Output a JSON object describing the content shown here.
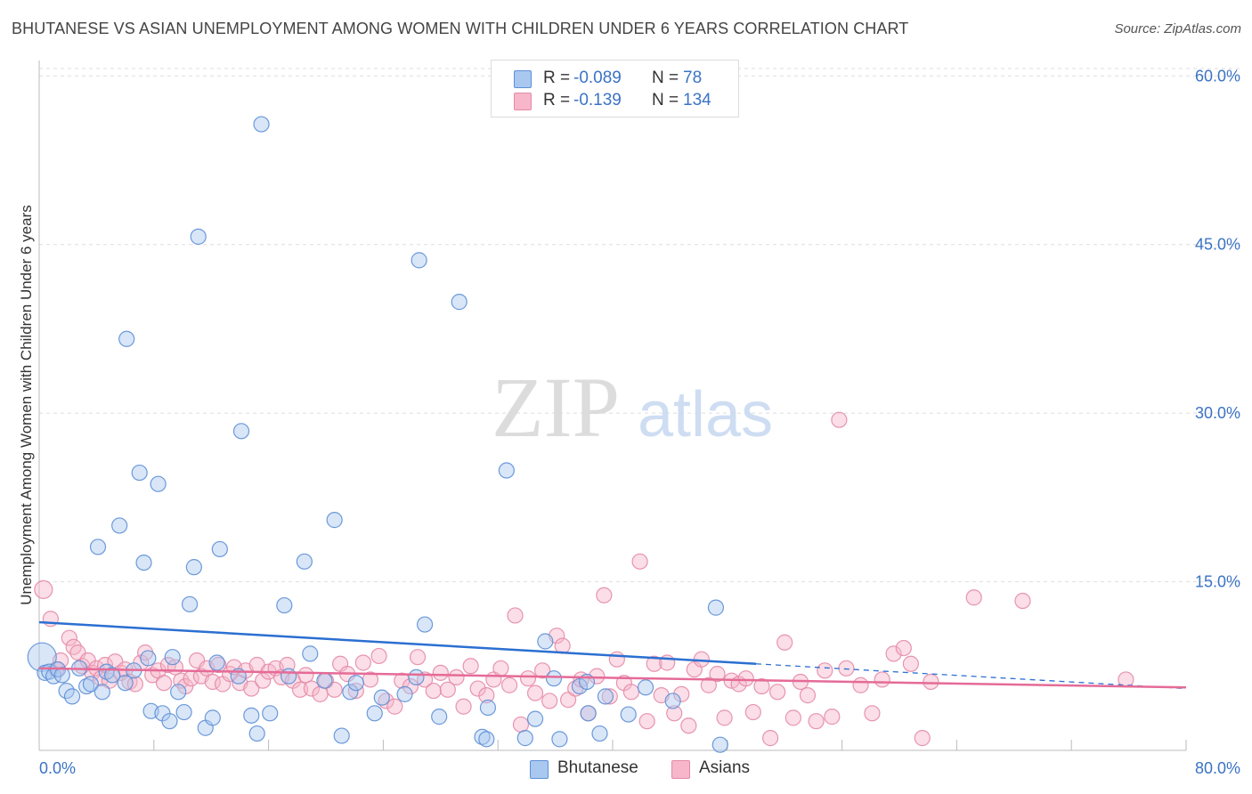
{
  "header": {
    "title": "BHUTANESE VS ASIAN UNEMPLOYMENT AMONG WOMEN WITH CHILDREN UNDER 6 YEARS CORRELATION CHART",
    "source": "Source: ZipAtlas.com"
  },
  "watermark": {
    "zip": "ZIP",
    "atlas": "atlas"
  },
  "legend": {
    "rows": [
      {
        "r_label": "R =",
        "r_value": "-0.089",
        "n_label": "N =",
        "n_value": "78"
      },
      {
        "r_label": "R =",
        "r_value": "-0.139",
        "n_label": "N =",
        "n_value": "134"
      }
    ],
    "bottom": [
      "Bhutanese",
      "Asians"
    ]
  },
  "colors": {
    "bhutanese_fill": "#a9c8f0",
    "bhutanese_stroke": "#5d8fd6",
    "bhutanese_line": "#2b6fd1",
    "asians_fill": "#f7b6c9",
    "asians_stroke": "#e48aa7",
    "asians_line": "#e56b97",
    "axis_text": "#3b73c4"
  },
  "chart_data": {
    "type": "scatter",
    "title": "BHUTANESE VS ASIAN UNEMPLOYMENT AMONG WOMEN WITH CHILDREN UNDER 6 YEARS CORRELATION CHART",
    "xlabel": "",
    "ylabel": "Unemployment Among Women with Children Under 6 years",
    "xlim": [
      0,
      80
    ],
    "ylim": [
      0,
      62
    ],
    "x_tick_labels": [
      "0.0%",
      "80.0%"
    ],
    "y_ticks": [
      15,
      30,
      45,
      60
    ],
    "y_tick_labels": [
      "15.0%",
      "30.0%",
      "45.0%",
      "60.0%"
    ],
    "grid": "horizontal dashed",
    "legend_position": "top-center",
    "series": [
      {
        "name": "Bhutanese",
        "r": -0.089,
        "n": 78,
        "trend": {
          "x": [
            0,
            50
          ],
          "y": [
            11.4,
            7.7
          ],
          "dashed_extension": {
            "x": [
              50,
              80
            ],
            "y": [
              7.7,
              5.5
            ]
          }
        },
        "points": [
          [
            0.2,
            8.3
          ],
          [
            0.4,
            6.9
          ],
          [
            0.7,
            7.0
          ],
          [
            1.0,
            6.6
          ],
          [
            1.3,
            7.2
          ],
          [
            1.6,
            6.7
          ],
          [
            1.9,
            5.3
          ],
          [
            2.3,
            4.8
          ],
          [
            2.8,
            7.3
          ],
          [
            3.3,
            5.7
          ],
          [
            3.6,
            5.9
          ],
          [
            4.1,
            18.1
          ],
          [
            4.4,
            5.2
          ],
          [
            4.7,
            7.0
          ],
          [
            5.1,
            6.7
          ],
          [
            5.6,
            20.0
          ],
          [
            6.0,
            6.0
          ],
          [
            6.1,
            36.6
          ],
          [
            6.6,
            7.1
          ],
          [
            7.0,
            24.7
          ],
          [
            7.3,
            16.7
          ],
          [
            7.6,
            8.2
          ],
          [
            7.8,
            3.5
          ],
          [
            8.3,
            23.7
          ],
          [
            8.6,
            3.3
          ],
          [
            9.1,
            2.6
          ],
          [
            9.3,
            8.3
          ],
          [
            9.7,
            5.2
          ],
          [
            10.1,
            3.4
          ],
          [
            10.5,
            13.0
          ],
          [
            10.8,
            16.3
          ],
          [
            11.1,
            45.7
          ],
          [
            11.6,
            2.0
          ],
          [
            12.1,
            2.9
          ],
          [
            12.4,
            7.8
          ],
          [
            12.6,
            17.9
          ],
          [
            13.9,
            6.6
          ],
          [
            14.1,
            28.4
          ],
          [
            14.8,
            3.1
          ],
          [
            15.2,
            1.5
          ],
          [
            15.5,
            55.7
          ],
          [
            16.1,
            3.3
          ],
          [
            17.1,
            12.9
          ],
          [
            17.4,
            6.6
          ],
          [
            18.5,
            16.8
          ],
          [
            18.9,
            8.6
          ],
          [
            19.9,
            6.2
          ],
          [
            20.6,
            20.5
          ],
          [
            21.1,
            1.3
          ],
          [
            21.7,
            5.2
          ],
          [
            22.1,
            6.0
          ],
          [
            23.4,
            3.3
          ],
          [
            23.9,
            4.7
          ],
          [
            25.5,
            5.0
          ],
          [
            26.3,
            6.5
          ],
          [
            26.5,
            43.6
          ],
          [
            26.9,
            11.2
          ],
          [
            27.9,
            3.0
          ],
          [
            29.3,
            39.9
          ],
          [
            30.9,
            1.2
          ],
          [
            31.2,
            1.0
          ],
          [
            31.3,
            3.8
          ],
          [
            32.6,
            24.9
          ],
          [
            33.9,
            1.1
          ],
          [
            34.6,
            2.8
          ],
          [
            35.3,
            9.7
          ],
          [
            35.9,
            6.4
          ],
          [
            36.3,
            1.0
          ],
          [
            37.7,
            5.7
          ],
          [
            38.2,
            6.1
          ],
          [
            38.3,
            3.3
          ],
          [
            39.1,
            1.5
          ],
          [
            39.5,
            4.8
          ],
          [
            41.1,
            3.2
          ],
          [
            42.3,
            5.6
          ],
          [
            44.2,
            4.4
          ],
          [
            47.2,
            12.7
          ],
          [
            47.5,
            0.5
          ]
        ]
      },
      {
        "name": "Asians",
        "r": -0.139,
        "n": 134,
        "trend": {
          "x": [
            0,
            80
          ],
          "y": [
            7.3,
            5.6
          ]
        },
        "points": [
          [
            0.3,
            14.3
          ],
          [
            0.8,
            11.7
          ],
          [
            1.2,
            7.2
          ],
          [
            1.5,
            8.0
          ],
          [
            2.1,
            10.0
          ],
          [
            2.4,
            9.2
          ],
          [
            2.7,
            8.7
          ],
          [
            3.0,
            7.5
          ],
          [
            3.4,
            8.0
          ],
          [
            3.7,
            6.9
          ],
          [
            4.0,
            7.3
          ],
          [
            4.3,
            6.4
          ],
          [
            4.6,
            7.6
          ],
          [
            4.9,
            6.2
          ],
          [
            5.3,
            7.9
          ],
          [
            5.7,
            6.9
          ],
          [
            6.0,
            7.2
          ],
          [
            6.3,
            6.1
          ],
          [
            6.7,
            5.9
          ],
          [
            7.1,
            7.8
          ],
          [
            7.4,
            8.7
          ],
          [
            7.9,
            6.7
          ],
          [
            8.3,
            7.1
          ],
          [
            8.7,
            6.0
          ],
          [
            9.0,
            7.6
          ],
          [
            9.5,
            7.4
          ],
          [
            9.9,
            6.2
          ],
          [
            10.2,
            5.7
          ],
          [
            10.6,
            6.4
          ],
          [
            11.0,
            8.0
          ],
          [
            11.3,
            6.6
          ],
          [
            11.7,
            7.3
          ],
          [
            12.1,
            6.1
          ],
          [
            12.5,
            7.6
          ],
          [
            12.8,
            5.9
          ],
          [
            13.3,
            6.8
          ],
          [
            13.6,
            7.4
          ],
          [
            14.0,
            6.0
          ],
          [
            14.4,
            7.1
          ],
          [
            14.8,
            5.5
          ],
          [
            15.2,
            7.6
          ],
          [
            15.6,
            6.2
          ],
          [
            16.0,
            7.0
          ],
          [
            16.5,
            7.3
          ],
          [
            16.9,
            6.5
          ],
          [
            17.3,
            7.6
          ],
          [
            17.7,
            6.2
          ],
          [
            18.2,
            5.4
          ],
          [
            18.6,
            6.7
          ],
          [
            19.0,
            5.5
          ],
          [
            19.6,
            5.0
          ],
          [
            20.0,
            6.2
          ],
          [
            20.6,
            5.4
          ],
          [
            21.0,
            7.7
          ],
          [
            21.5,
            6.8
          ],
          [
            22.1,
            5.3
          ],
          [
            22.6,
            7.8
          ],
          [
            23.1,
            6.3
          ],
          [
            23.7,
            8.4
          ],
          [
            24.2,
            4.4
          ],
          [
            24.8,
            3.9
          ],
          [
            25.3,
            6.2
          ],
          [
            25.9,
            5.7
          ],
          [
            26.4,
            8.3
          ],
          [
            26.9,
            6.3
          ],
          [
            27.5,
            5.3
          ],
          [
            28.0,
            6.9
          ],
          [
            28.5,
            5.4
          ],
          [
            29.1,
            6.5
          ],
          [
            29.6,
            3.9
          ],
          [
            30.1,
            7.5
          ],
          [
            30.6,
            5.5
          ],
          [
            31.2,
            4.9
          ],
          [
            31.7,
            6.3
          ],
          [
            32.2,
            7.3
          ],
          [
            32.8,
            5.8
          ],
          [
            33.2,
            12.0
          ],
          [
            33.6,
            2.3
          ],
          [
            34.1,
            6.4
          ],
          [
            34.6,
            5.1
          ],
          [
            35.1,
            7.1
          ],
          [
            35.6,
            4.4
          ],
          [
            36.1,
            10.2
          ],
          [
            36.5,
            9.3
          ],
          [
            36.9,
            4.5
          ],
          [
            37.4,
            5.5
          ],
          [
            37.8,
            6.3
          ],
          [
            38.3,
            3.3
          ],
          [
            38.9,
            6.6
          ],
          [
            39.4,
            13.8
          ],
          [
            39.8,
            4.8
          ],
          [
            40.3,
            8.1
          ],
          [
            40.8,
            6.0
          ],
          [
            41.3,
            5.2
          ],
          [
            41.9,
            16.8
          ],
          [
            42.4,
            2.6
          ],
          [
            42.9,
            7.7
          ],
          [
            43.4,
            4.9
          ],
          [
            43.8,
            7.8
          ],
          [
            44.3,
            3.3
          ],
          [
            44.8,
            5.0
          ],
          [
            45.3,
            2.2
          ],
          [
            45.7,
            7.2
          ],
          [
            46.2,
            8.1
          ],
          [
            46.7,
            5.8
          ],
          [
            47.3,
            6.8
          ],
          [
            47.8,
            2.9
          ],
          [
            48.3,
            6.2
          ],
          [
            48.8,
            5.9
          ],
          [
            49.3,
            6.4
          ],
          [
            49.8,
            3.4
          ],
          [
            50.4,
            5.7
          ],
          [
            51.0,
            1.1
          ],
          [
            51.5,
            5.2
          ],
          [
            52.0,
            9.6
          ],
          [
            52.6,
            2.9
          ],
          [
            53.1,
            6.1
          ],
          [
            53.6,
            4.9
          ],
          [
            54.2,
            2.6
          ],
          [
            54.8,
            7.1
          ],
          [
            55.3,
            3.0
          ],
          [
            55.8,
            29.4
          ],
          [
            56.3,
            7.3
          ],
          [
            57.3,
            5.8
          ],
          [
            58.1,
            3.3
          ],
          [
            58.8,
            6.3
          ],
          [
            59.6,
            8.6
          ],
          [
            60.3,
            9.1
          ],
          [
            60.8,
            7.7
          ],
          [
            61.6,
            1.1
          ],
          [
            62.2,
            6.1
          ],
          [
            65.2,
            13.6
          ],
          [
            68.6,
            13.3
          ],
          [
            75.8,
            6.3
          ]
        ]
      }
    ]
  }
}
